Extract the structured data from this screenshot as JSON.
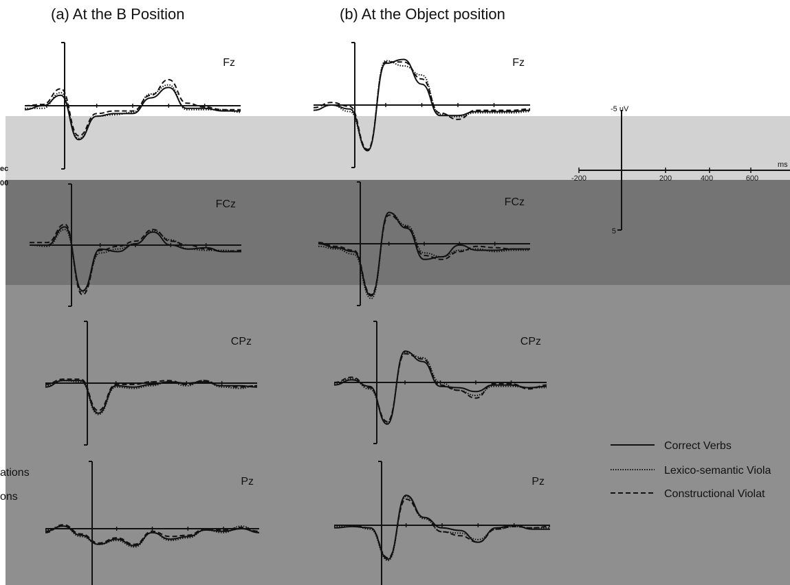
{
  "colors": {
    "band_light": "#d2d2d2",
    "band_dark": "#747474",
    "band_mid": "#8f8f8f",
    "trace": "#111111"
  },
  "panels": {
    "a_title": "(a) At the B Position",
    "b_title": "(b) At the Object position"
  },
  "side_fragments": {
    "sec": "ec",
    "zero": "00",
    "ations": "ations",
    "ons": "ons"
  },
  "chart_data": {
    "type": "line",
    "title": "",
    "x_unit": "ms",
    "y_unit": "uV",
    "x_ticks": [
      "-200",
      "200",
      "400",
      "600"
    ],
    "y_ticks": [
      "-5",
      "5"
    ],
    "xlim": [
      -200,
      1000
    ],
    "ylim": [
      -5,
      5
    ],
    "y_axis": "negative up",
    "legend_position": "bottom-right",
    "legend": [
      {
        "name": "Correct Verbs",
        "style": "solid"
      },
      {
        "name": "Lexico-semantic Viola",
        "style": "dotted"
      },
      {
        "name": "Constructional Violat",
        "style": "dashed"
      }
    ],
    "scale_labels": {
      "y_top": "-5 uV",
      "y_bottom": "5",
      "x": "ms"
    },
    "x": [
      -200,
      -100,
      0,
      100,
      200,
      300,
      400,
      500,
      600,
      700,
      800,
      900,
      1000
    ],
    "panels": [
      {
        "condition_panel": "a",
        "electrode": "Fz",
        "series": [
          {
            "name": "Correct Verbs",
            "values": [
              0.3,
              0.0,
              -0.8,
              2.6,
              0.8,
              0.6,
              0.6,
              -0.6,
              -1.4,
              0.2,
              0.2,
              0.4,
              0.4
            ]
          },
          {
            "name": "Lexico-semantic Viola",
            "values": [
              0.2,
              0.2,
              -1.0,
              2.5,
              0.8,
              0.7,
              0.5,
              -0.9,
              -1.6,
              0.3,
              0.3,
              0.3,
              0.5
            ]
          },
          {
            "name": "Constructional Violat",
            "values": [
              0.0,
              -0.1,
              -1.3,
              2.3,
              0.6,
              0.4,
              0.4,
              -0.8,
              -2.0,
              -0.2,
              0.1,
              0.3,
              0.3
            ]
          }
        ]
      },
      {
        "condition_panel": "a",
        "electrode": "FCz",
        "series": [
          {
            "name": "Correct Verbs",
            "values": [
              0.0,
              0.0,
              -1.4,
              3.5,
              0.3,
              0.5,
              -0.1,
              -1.0,
              0.0,
              0.3,
              0.2,
              0.5,
              0.5
            ]
          },
          {
            "name": "Lexico-semantic Viola",
            "values": [
              0.0,
              0.1,
              -1.2,
              3.6,
              0.6,
              0.3,
              -0.1,
              -1.1,
              -0.4,
              0.3,
              0.4,
              0.4,
              0.5
            ]
          },
          {
            "name": "Constructional Violat",
            "values": [
              -0.2,
              -0.2,
              -1.6,
              3.8,
              0.4,
              0.1,
              -0.3,
              -1.2,
              -0.3,
              0.0,
              0.3,
              0.5,
              0.4
            ]
          }
        ]
      },
      {
        "condition_panel": "a",
        "electrode": "CPz",
        "series": [
          {
            "name": "Correct Verbs",
            "values": [
              0.3,
              -0.2,
              -0.2,
              2.3,
              0.2,
              0.3,
              0.1,
              -0.1,
              0.0,
              -0.1,
              0.2,
              0.2,
              0.3
            ]
          },
          {
            "name": "Lexico-semantic Viola",
            "values": [
              0.2,
              -0.2,
              -0.1,
              2.4,
              0.3,
              0.4,
              0.2,
              -0.1,
              0.2,
              -0.2,
              0.3,
              0.4,
              0.2
            ]
          },
          {
            "name": "Constructional Violat",
            "values": [
              0.1,
              -0.3,
              -0.3,
              2.1,
              0.1,
              0.1,
              -0.1,
              -0.2,
              0.1,
              -0.2,
              0.2,
              0.3,
              0.2
            ]
          }
        ]
      },
      {
        "condition_panel": "a",
        "electrode": "Pz",
        "series": [
          {
            "name": "Correct Verbs",
            "values": [
              0.2,
              -0.2,
              0.5,
              1.2,
              0.8,
              1.3,
              0.3,
              0.8,
              0.6,
              0.1,
              0.2,
              0.0,
              0.3
            ]
          },
          {
            "name": "Lexico-semantic Viola",
            "values": [
              0.1,
              -0.2,
              0.6,
              1.2,
              0.9,
              1.4,
              0.3,
              0.9,
              0.7,
              0.1,
              0.3,
              -0.2,
              0.3
            ]
          },
          {
            "name": "Constructional Violat",
            "values": [
              0.3,
              -0.3,
              0.4,
              1.1,
              0.7,
              1.2,
              0.2,
              0.6,
              0.5,
              0.0,
              0.1,
              -0.1,
              0.2
            ]
          }
        ]
      },
      {
        "condition_panel": "b",
        "electrode": "Fz",
        "series": [
          {
            "name": "Correct Verbs",
            "values": [
              0.4,
              0.0,
              0.3,
              3.5,
              -3.2,
              -3.5,
              -1.6,
              0.8,
              0.8,
              0.5,
              0.5,
              0.5,
              0.4
            ]
          },
          {
            "name": "Lexico-semantic Viola",
            "values": [
              0.4,
              0.0,
              0.5,
              3.5,
              -3.4,
              -3.0,
              -2.3,
              0.7,
              0.9,
              0.6,
              0.6,
              0.6,
              0.5
            ]
          },
          {
            "name": "Constructional Violat",
            "values": [
              0.2,
              -0.2,
              0.1,
              3.4,
              -3.3,
              -3.3,
              -2.0,
              0.6,
              1.1,
              0.4,
              0.4,
              0.4,
              0.3
            ]
          }
        ]
      },
      {
        "condition_panel": "b",
        "electrode": "FCz",
        "series": [
          {
            "name": "Correct Verbs",
            "values": [
              0.0,
              0.3,
              0.6,
              4.0,
              -2.4,
              -1.2,
              1.2,
              1.0,
              0.1,
              0.5,
              0.5,
              0.4,
              0.4
            ]
          },
          {
            "name": "Lexico-semantic Viola",
            "values": [
              0.2,
              0.4,
              0.8,
              4.2,
              -2.4,
              -1.4,
              0.7,
              1.0,
              0.5,
              0.4,
              0.6,
              0.5,
              0.5
            ]
          },
          {
            "name": "Constructional Violat",
            "values": [
              -0.1,
              0.2,
              0.5,
              3.9,
              -2.2,
              -1.3,
              0.9,
              1.2,
              0.6,
              0.2,
              0.3,
              0.4,
              0.4
            ]
          }
        ]
      },
      {
        "condition_panel": "b",
        "electrode": "CPz",
        "series": [
          {
            "name": "Correct Verbs",
            "values": [
              0.2,
              -0.2,
              0.3,
              3.2,
              -2.4,
              -1.6,
              0.3,
              0.4,
              0.7,
              0.2,
              0.2,
              0.4,
              0.3
            ]
          },
          {
            "name": "Lexico-semantic Viola",
            "values": [
              0.1,
              -0.3,
              0.5,
              3.1,
              -2.3,
              -1.9,
              0.0,
              0.6,
              1.0,
              0.3,
              0.3,
              0.4,
              0.4
            ]
          },
          {
            "name": "Constructional Violat",
            "values": [
              0.0,
              -0.4,
              0.4,
              3.0,
              -2.2,
              -1.8,
              0.2,
              0.6,
              1.2,
              0.1,
              0.1,
              0.5,
              0.2
            ]
          }
        ]
      },
      {
        "condition_panel": "b",
        "electrode": "Pz",
        "series": [
          {
            "name": "Correct Verbs",
            "values": [
              0.2,
              0.1,
              0.2,
              2.6,
              -2.3,
              -0.6,
              0.2,
              0.4,
              1.3,
              0.2,
              0.0,
              0.3,
              0.3
            ]
          },
          {
            "name": "Lexico-semantic Viola",
            "values": [
              0.1,
              0.0,
              0.3,
              2.7,
              -2.2,
              -0.5,
              0.5,
              0.6,
              1.1,
              0.3,
              0.1,
              0.2,
              0.2
            ]
          },
          {
            "name": "Constructional Violat",
            "values": [
              0.0,
              0.0,
              0.2,
              2.5,
              -2.0,
              -0.6,
              0.5,
              0.8,
              1.3,
              0.3,
              0.1,
              0.2,
              0.1
            ]
          }
        ]
      }
    ]
  }
}
